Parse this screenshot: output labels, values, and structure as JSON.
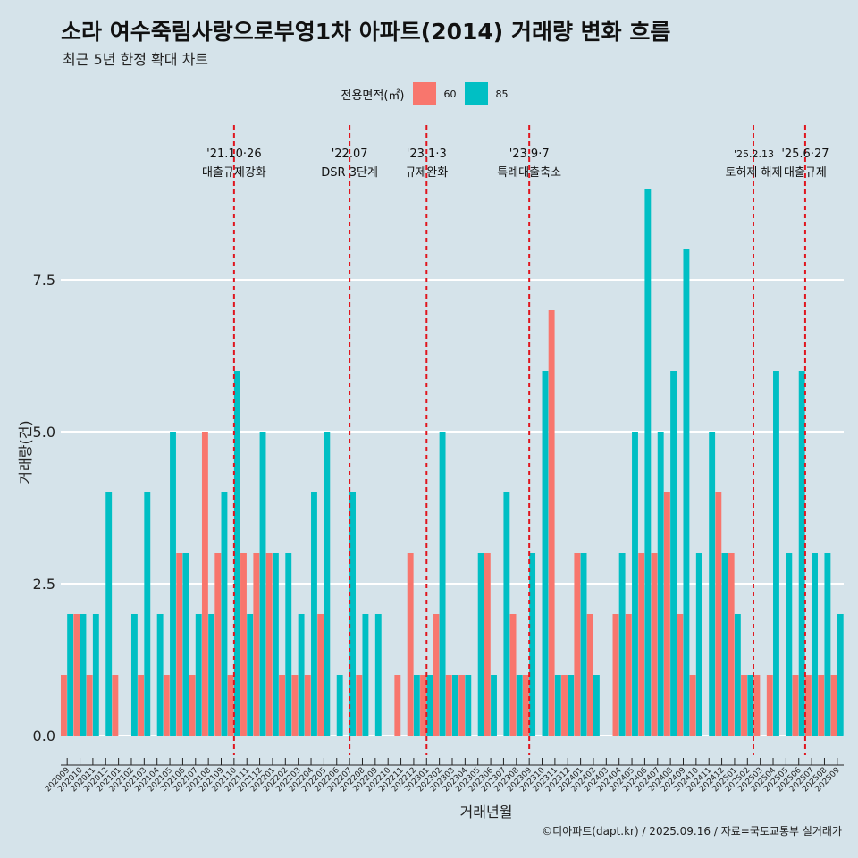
{
  "chart_data": {
    "type": "bar",
    "title": "소라 여수죽림사랑으로부영1차 아파트(2014) 거래량 변화 흐름",
    "subtitle": "최근 5년 한정 확대 차트",
    "xlabel": "거래년월",
    "ylabel": "거래량(건)",
    "ylim": [
      -0.35,
      9.5
    ],
    "yticks": [
      "0.0",
      "2.5",
      "5.0",
      "7.5"
    ],
    "ytick_values": [
      0,
      2.5,
      5,
      7.5
    ],
    "legend_title": "전용면적(㎡)",
    "categories": [
      "202009",
      "202010",
      "202011",
      "202012",
      "202101",
      "202102",
      "202103",
      "202104",
      "202105",
      "202106",
      "202107",
      "202108",
      "202109",
      "202110",
      "202111",
      "202112",
      "202201",
      "202202",
      "202203",
      "202204",
      "202205",
      "202206",
      "202207",
      "202208",
      "202209",
      "202210",
      "202211",
      "202212",
      "202301",
      "202302",
      "202303",
      "202304",
      "202305",
      "202306",
      "202307",
      "202308",
      "202309",
      "202310",
      "202311",
      "202312",
      "202401",
      "202402",
      "202403",
      "202404",
      "202405",
      "202406",
      "202407",
      "202408",
      "202409",
      "202410",
      "202411",
      "202412",
      "202501",
      "202502",
      "202503",
      "202504",
      "202505",
      "202506",
      "202507",
      "202508",
      "202509"
    ],
    "series": [
      {
        "name": "60",
        "color": "#f8766d",
        "values": [
          1,
          2,
          1,
          0,
          1,
          0,
          1,
          0,
          1,
          3,
          1,
          5,
          3,
          1,
          3,
          3,
          3,
          1,
          1,
          1,
          2,
          0,
          0,
          1,
          0,
          0,
          1,
          3,
          1,
          2,
          1,
          1,
          0,
          3,
          0,
          2,
          1,
          0,
          7,
          1,
          3,
          2,
          0,
          2,
          2,
          3,
          3,
          4,
          2,
          1,
          0,
          4,
          3,
          1,
          1,
          1,
          0,
          1,
          1,
          1,
          1
        ]
      },
      {
        "name": "85",
        "color": "#00bfc4",
        "values": [
          2,
          2,
          2,
          4,
          0,
          2,
          4,
          2,
          5,
          3,
          2,
          2,
          4,
          6,
          2,
          5,
          3,
          3,
          2,
          4,
          5,
          1,
          4,
          2,
          2,
          0,
          0,
          1,
          1,
          5,
          1,
          1,
          3,
          1,
          4,
          1,
          3,
          6,
          1,
          1,
          3,
          1,
          0,
          3,
          5,
          9,
          5,
          6,
          8,
          3,
          5,
          3,
          2,
          1,
          0,
          6,
          3,
          6,
          3,
          3,
          2
        ]
      }
    ],
    "events": [
      {
        "label": "'21.10·26",
        "sub": "대출규제강화",
        "index": 13,
        "style": "bold"
      },
      {
        "label": "'22.07",
        "sub": "DSR 3단계",
        "index": 22,
        "style": "bold"
      },
      {
        "label": "'23.1·3",
        "sub": "규제완화",
        "index": 28,
        "style": "bold"
      },
      {
        "label": "'23.9·7",
        "sub": "특례대출축소",
        "index": 36,
        "style": "bold"
      },
      {
        "label": "'25.2.13",
        "sub": "토허제 해제",
        "index": 53.5,
        "style": "thin"
      },
      {
        "label": "'25.6·27",
        "sub": "대출규제",
        "index": 57.5,
        "style": "bold"
      }
    ]
  },
  "caption": "©디아파트(dapt.kr) / 2025.09.16 / 자료=국토교통부 실거래가"
}
